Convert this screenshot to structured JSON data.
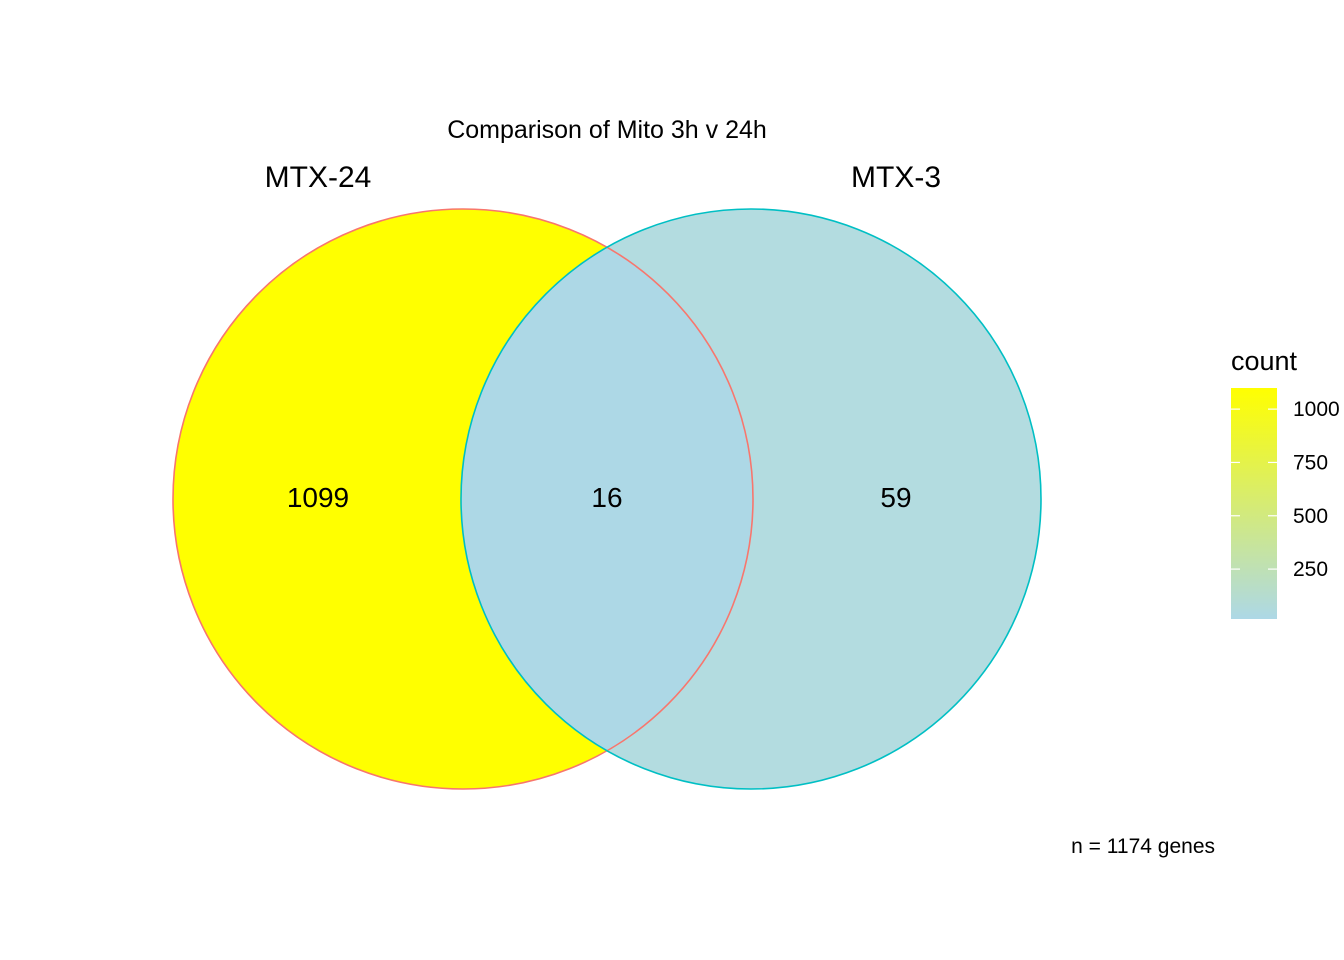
{
  "chart_data": {
    "type": "venn",
    "title": "Comparison of Mito 3h v 24h",
    "sets": [
      {
        "name": "MTX-24",
        "only_count": 1099,
        "fill": "#FFFF00",
        "stroke": "#F8766D"
      },
      {
        "name": "MTX-3",
        "only_count": 59,
        "fill": "#B3DCE0",
        "stroke": "#00BFC4"
      }
    ],
    "intersection": {
      "sets": [
        "MTX-24",
        "MTX-3"
      ],
      "count": 16,
      "fill": "#ADD8E6"
    },
    "region_labels": [
      "1099",
      "16",
      "59"
    ],
    "caption": "n = 1174 genes",
    "legend": {
      "title": "count",
      "position": "right",
      "colorbar": {
        "low_color": "#ADD8E6",
        "high_color": "#FFFF00",
        "min": 16,
        "max": 1099
      },
      "ticks": [
        250,
        500,
        750,
        1000
      ],
      "tick_labels": [
        "250",
        "500",
        "750",
        "1000"
      ]
    }
  }
}
